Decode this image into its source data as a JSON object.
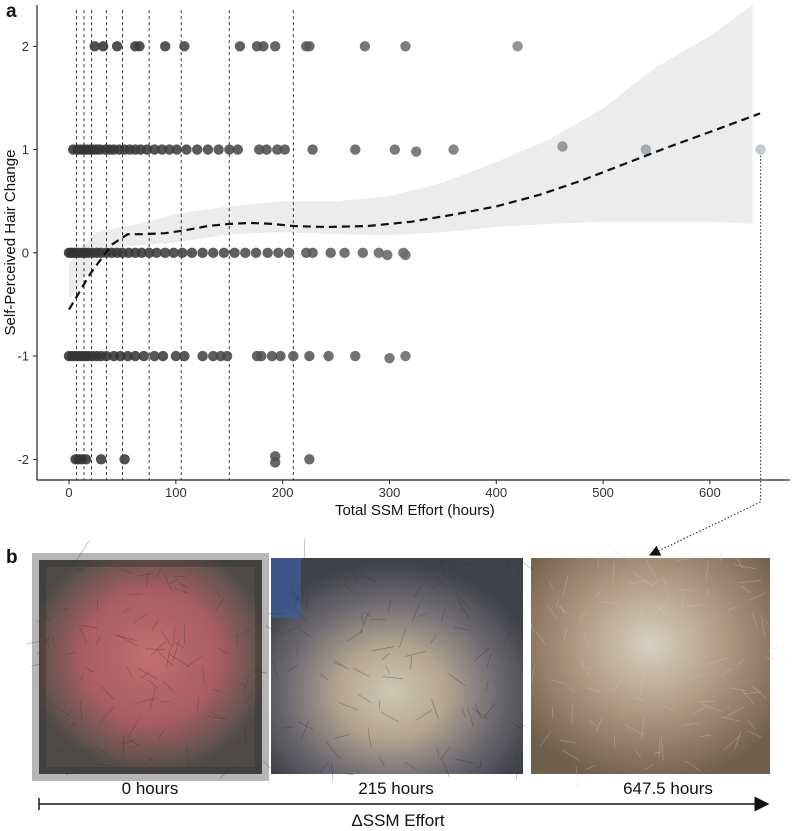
{
  "panel_a_label": "a",
  "panel_b_label": "b",
  "chart_data": {
    "type": "scatter",
    "title": "",
    "xlabel": "Total SSM Effort (hours)",
    "ylabel": "Self-Perceived Hair Change",
    "xlim": [
      -30,
      675
    ],
    "ylim": [
      -2.2,
      2.4
    ],
    "xticks": [
      0,
      100,
      200,
      300,
      400,
      500,
      600
    ],
    "yticks": [
      -2,
      -1,
      0,
      1,
      2
    ],
    "grid": false,
    "colors": {
      "point_dark": "#333333",
      "point_light": "#b7c4cc",
      "ribbon": "#ececec",
      "trend": "#111111"
    },
    "vertical_reference_lines_x": [
      7,
      14,
      21,
      35,
      50,
      75,
      105,
      150,
      210
    ],
    "points": [
      {
        "x": 24,
        "y": 2
      },
      {
        "x": 32,
        "y": 2
      },
      {
        "x": 45,
        "y": 2
      },
      {
        "x": 62,
        "y": 2
      },
      {
        "x": 66,
        "y": 2
      },
      {
        "x": 90,
        "y": 2
      },
      {
        "x": 108,
        "y": 2
      },
      {
        "x": 160,
        "y": 2
      },
      {
        "x": 176,
        "y": 2
      },
      {
        "x": 182,
        "y": 2
      },
      {
        "x": 193,
        "y": 2
      },
      {
        "x": 222,
        "y": 2
      },
      {
        "x": 225,
        "y": 2
      },
      {
        "x": 277,
        "y": 2
      },
      {
        "x": 315,
        "y": 2
      },
      {
        "x": 420,
        "y": 2
      },
      {
        "x": 4,
        "y": 1
      },
      {
        "x": 8,
        "y": 1
      },
      {
        "x": 11,
        "y": 1
      },
      {
        "x": 14,
        "y": 1
      },
      {
        "x": 17,
        "y": 1
      },
      {
        "x": 20,
        "y": 1
      },
      {
        "x": 23,
        "y": 1
      },
      {
        "x": 26,
        "y": 1
      },
      {
        "x": 29,
        "y": 1
      },
      {
        "x": 34,
        "y": 1
      },
      {
        "x": 38,
        "y": 1
      },
      {
        "x": 42,
        "y": 1
      },
      {
        "x": 47,
        "y": 1
      },
      {
        "x": 52,
        "y": 1
      },
      {
        "x": 57,
        "y": 1
      },
      {
        "x": 62,
        "y": 1
      },
      {
        "x": 67,
        "y": 1
      },
      {
        "x": 73,
        "y": 1
      },
      {
        "x": 80,
        "y": 1
      },
      {
        "x": 87,
        "y": 1
      },
      {
        "x": 94,
        "y": 1
      },
      {
        "x": 101,
        "y": 1
      },
      {
        "x": 110,
        "y": 1
      },
      {
        "x": 120,
        "y": 1
      },
      {
        "x": 130,
        "y": 1
      },
      {
        "x": 140,
        "y": 1
      },
      {
        "x": 150,
        "y": 1
      },
      {
        "x": 158,
        "y": 1
      },
      {
        "x": 178,
        "y": 1
      },
      {
        "x": 185,
        "y": 1
      },
      {
        "x": 195,
        "y": 1
      },
      {
        "x": 202,
        "y": 1
      },
      {
        "x": 228,
        "y": 1
      },
      {
        "x": 268,
        "y": 1
      },
      {
        "x": 305,
        "y": 1
      },
      {
        "x": 325,
        "y": 0.98
      },
      {
        "x": 360,
        "y": 1
      },
      {
        "x": 462,
        "y": 1.03
      },
      {
        "x": 540,
        "y": 1
      },
      {
        "x": 647.5,
        "y": 1
      },
      {
        "x": 0,
        "y": 0
      },
      {
        "x": 2,
        "y": 0
      },
      {
        "x": 4,
        "y": 0
      },
      {
        "x": 6,
        "y": 0
      },
      {
        "x": 9,
        "y": 0
      },
      {
        "x": 12,
        "y": 0
      },
      {
        "x": 15,
        "y": 0
      },
      {
        "x": 18,
        "y": 0
      },
      {
        "x": 22,
        "y": 0
      },
      {
        "x": 26,
        "y": 0
      },
      {
        "x": 30,
        "y": 0
      },
      {
        "x": 35,
        "y": 0
      },
      {
        "x": 40,
        "y": 0
      },
      {
        "x": 45,
        "y": 0
      },
      {
        "x": 50,
        "y": 0
      },
      {
        "x": 56,
        "y": 0
      },
      {
        "x": 62,
        "y": 0
      },
      {
        "x": 68,
        "y": 0
      },
      {
        "x": 75,
        "y": 0
      },
      {
        "x": 82,
        "y": 0
      },
      {
        "x": 90,
        "y": 0
      },
      {
        "x": 98,
        "y": 0
      },
      {
        "x": 106,
        "y": 0
      },
      {
        "x": 115,
        "y": 0
      },
      {
        "x": 125,
        "y": 0
      },
      {
        "x": 135,
        "y": 0
      },
      {
        "x": 145,
        "y": 0
      },
      {
        "x": 155,
        "y": 0
      },
      {
        "x": 165,
        "y": 0
      },
      {
        "x": 175,
        "y": 0
      },
      {
        "x": 186,
        "y": 0
      },
      {
        "x": 196,
        "y": 0
      },
      {
        "x": 206,
        "y": 0
      },
      {
        "x": 222,
        "y": 0
      },
      {
        "x": 228,
        "y": 0
      },
      {
        "x": 245,
        "y": 0
      },
      {
        "x": 258,
        "y": 0
      },
      {
        "x": 275,
        "y": 0
      },
      {
        "x": 290,
        "y": 0
      },
      {
        "x": 298,
        "y": -0.02
      },
      {
        "x": 313,
        "y": 0
      },
      {
        "x": 315,
        "y": -0.02
      },
      {
        "x": 0,
        "y": -1
      },
      {
        "x": 3,
        "y": -1
      },
      {
        "x": 6,
        "y": -1
      },
      {
        "x": 9,
        "y": -1
      },
      {
        "x": 12,
        "y": -1
      },
      {
        "x": 15,
        "y": -1
      },
      {
        "x": 18,
        "y": -1
      },
      {
        "x": 22,
        "y": -1
      },
      {
        "x": 26,
        "y": -1
      },
      {
        "x": 30,
        "y": -1
      },
      {
        "x": 35,
        "y": -1
      },
      {
        "x": 42,
        "y": -1
      },
      {
        "x": 48,
        "y": -1
      },
      {
        "x": 55,
        "y": -1
      },
      {
        "x": 62,
        "y": -1
      },
      {
        "x": 70,
        "y": -1
      },
      {
        "x": 80,
        "y": -1
      },
      {
        "x": 88,
        "y": -1
      },
      {
        "x": 100,
        "y": -1
      },
      {
        "x": 108,
        "y": -1
      },
      {
        "x": 125,
        "y": -1
      },
      {
        "x": 135,
        "y": -1
      },
      {
        "x": 142,
        "y": -1
      },
      {
        "x": 148,
        "y": -1
      },
      {
        "x": 176,
        "y": -1
      },
      {
        "x": 180,
        "y": -1
      },
      {
        "x": 190,
        "y": -1
      },
      {
        "x": 198,
        "y": -1
      },
      {
        "x": 210,
        "y": -1
      },
      {
        "x": 225,
        "y": -1
      },
      {
        "x": 243,
        "y": -1
      },
      {
        "x": 268,
        "y": -1
      },
      {
        "x": 300,
        "y": -1.02
      },
      {
        "x": 315,
        "y": -1
      },
      {
        "x": 6,
        "y": -2
      },
      {
        "x": 9,
        "y": -2
      },
      {
        "x": 12,
        "y": -2
      },
      {
        "x": 16,
        "y": -2
      },
      {
        "x": 30,
        "y": -2
      },
      {
        "x": 52,
        "y": -2
      },
      {
        "x": 193,
        "y": -1.97
      },
      {
        "x": 193,
        "y": -2.03
      },
      {
        "x": 225,
        "y": -2
      }
    ],
    "confidence_band": {
      "x": [
        0,
        25,
        50,
        75,
        100,
        150,
        200,
        250,
        300,
        350,
        400,
        450,
        500,
        550,
        600,
        640
      ],
      "lower": [
        -0.45,
        -0.1,
        0.06,
        0.08,
        0.1,
        0.18,
        0.2,
        0.18,
        0.17,
        0.2,
        0.25,
        0.28,
        0.3,
        0.3,
        0.3,
        0.28
      ],
      "upper": [
        -0.1,
        0.2,
        0.25,
        0.3,
        0.38,
        0.45,
        0.5,
        0.5,
        0.55,
        0.68,
        0.88,
        1.1,
        1.4,
        1.8,
        2.1,
        2.4
      ]
    },
    "trend_line": {
      "x": [
        0,
        20,
        40,
        55,
        70,
        90,
        110,
        130,
        150,
        170,
        190,
        210,
        240,
        280,
        320,
        360,
        400,
        440,
        480,
        520,
        560,
        600,
        647
      ],
      "y": [
        -0.55,
        -0.2,
        0.08,
        0.18,
        0.18,
        0.19,
        0.22,
        0.26,
        0.28,
        0.29,
        0.28,
        0.26,
        0.25,
        0.26,
        0.3,
        0.37,
        0.45,
        0.56,
        0.7,
        0.86,
        1.02,
        1.17,
        1.35
      ]
    },
    "highlighted_point": {
      "x": 647.5,
      "y": 1
    }
  },
  "photos": [
    {
      "caption": "0 hours",
      "tone": "#a05a5e"
    },
    {
      "caption": "215 hours",
      "tone": "#8f8c94"
    },
    {
      "caption": "647.5 hours",
      "tone": "#a38d73"
    }
  ],
  "effort_axis_label": "ΔSSM Effort"
}
